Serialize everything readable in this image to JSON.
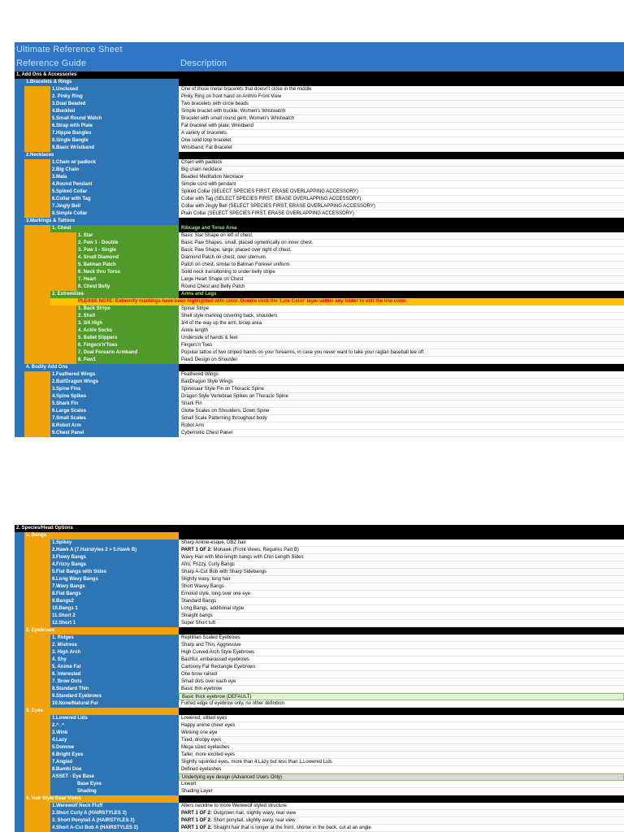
{
  "header": {
    "title": "Ultimate Reference Sheet",
    "col1": "Reference Guide",
    "col2": "Description"
  },
  "blocks": [
    {
      "sections": [
        {
          "title": "1. Add Ons & Accessories",
          "groups": [
            {
              "title": "1.Bracelets & Rings",
              "color": "#2e75b6",
              "item_color": "#2e75b6",
              "items": [
                {
                  "label": "1.Unclosed",
                  "desc": "One of those metal bracelets that doesn't close in the middle"
                },
                {
                  "label": "2. Pinky Ring",
                  "desc": "Pinky Ring on front hand on Anthro Front View"
                },
                {
                  "label": "3.Dual Beaded",
                  "desc": "Two bracelets with circle beads"
                },
                {
                  "label": "4.Buckled",
                  "desc": "Simple braclet with buckle; Women's Wristwatch"
                },
                {
                  "label": "5.Small Round Watch",
                  "desc": "Bracelet with small round gem; Women's Wristwatch"
                },
                {
                  "label": "6.Strap with Plate",
                  "desc": "Fat bracelet with plate; Wristband"
                },
                {
                  "label": "7.Hippie Bangles",
                  "desc": "A variety of bracelets."
                },
                {
                  "label": "8.Single Bangle",
                  "desc": "One solid loop bracelet."
                },
                {
                  "label": "9.Basic Wristband",
                  "desc": "Wristband; Fat Bracelet"
                }
              ]
            },
            {
              "title": "2.Necklaces",
              "color": "#2e75b6",
              "item_color": "#2e75b6",
              "items": [
                {
                  "label": "1.Chain w/ padlock",
                  "desc": "Chain with padlock"
                },
                {
                  "label": "2.Big Chain",
                  "desc": "Big chain necklace"
                },
                {
                  "label": "3.Mala",
                  "desc": "Beaded Meditation Necklace"
                },
                {
                  "label": "4.Round Pendant",
                  "desc": "Simple cord with pendant"
                },
                {
                  "label": "5.Spiked Collar",
                  "desc": "Spiked Collar (SELECT SPECIES FIRST, ERASE OVERLAPPING ACCESSORY)"
                },
                {
                  "label": "6.Collar with Tag",
                  "desc": "Collar with Tag (SELECT SPECIES FIRST, ERASE OVERLAPPING ACCESSORY)"
                },
                {
                  "label": "7.Jingly Bell",
                  "desc": "Collar with Jingly Bell (SELECT SPECIES FIRST, ERASE OVERLAPPING ACCESSORY)"
                },
                {
                  "label": "8.Simple Collar",
                  "desc": "Plain Collar (SELECT SPECIES FIRST, ERASE OVERLAPPING ACCESSORY)"
                }
              ]
            },
            {
              "title": "3.Markings & Tattoos",
              "color": "#2e75b6",
              "groups": [
                {
                  "title": "1. Chest",
                  "desc": "Ribcage and Torso Area",
                  "color": "#4f9a2a",
                  "item_color": "#4f9a2a",
                  "items": [
                    {
                      "label": "1. Star",
                      "desc": "Basic Star Shape on left of chest."
                    },
                    {
                      "label": "2. Paw 1 - Double",
                      "desc": "Basic Paw Shapes, small, placed symetrically on inner chest."
                    },
                    {
                      "label": "3. Paw 1 - Single",
                      "desc": "Basic Paw Shape, large, placed over right of chest."
                    },
                    {
                      "label": "4. Small Diamond",
                      "desc": "Diamond Patch on chest, over sternum."
                    },
                    {
                      "label": "5. Batman Patch",
                      "desc": "Patch on chest, similar to Batman Forever uniform."
                    },
                    {
                      "label": "6. Neck thru Torso",
                      "desc": "Solid neck transitioning to under belly stripe"
                    },
                    {
                      "label": "7. Heart",
                      "desc": "Large Heart Shape on Chest"
                    },
                    {
                      "label": "8. Chest Belly",
                      "desc": "Round Chest and Belly Patch"
                    }
                  ]
                },
                {
                  "title": "2. Extremities",
                  "desc": "Arms and Legs",
                  "color": "#4f9a2a",
                  "item_color": "#4f9a2a",
                  "note": "PLEASE NOTE: Extremity markings have been highlighted with color. Double click the 'Line Color' layer within any folder to edit the line color.",
                  "items": [
                    {
                      "label": "1. Back Stripe",
                      "desc": "Spinal Stripe"
                    },
                    {
                      "label": "2. Shell",
                      "desc": "Shell style marking covering back, shoulders"
                    },
                    {
                      "label": "3. 3/4 High",
                      "desc": "3/4 of the way up the arm, bicep area"
                    },
                    {
                      "label": "4. Ankle Socks",
                      "desc": "Ankle length"
                    },
                    {
                      "label": "5. Ballet Slippers",
                      "desc": "Underside of hands & feet"
                    },
                    {
                      "label": "6. Fingers'n'Toes",
                      "desc": "Fingers'n'Toes"
                    },
                    {
                      "label": "7. Dual Forearm Armband",
                      "desc": "Popular tattoo of two striped bands on your forearms, in case you never want to take your raglan baseball tee off."
                    },
                    {
                      "label": "8. Paw1",
                      "desc": "Paw1 Design on Shoulder"
                    }
                  ]
                }
              ]
            },
            {
              "title": "4. Bodily Add Ons",
              "color": "#2e75b6",
              "item_color": "#2e75b6",
              "items": [
                {
                  "label": "1.Feathered Wings",
                  "desc": "Feathered Wings"
                },
                {
                  "label": "2.Bat/Dragon Wings",
                  "desc": "Bat/Dragon Style Wings"
                },
                {
                  "label": "3.Spine Fins",
                  "desc": "Spinosaur Style Fin on Thoracic Spine"
                },
                {
                  "label": "4.Spine Spikes",
                  "desc": "Dragon Style Vertebrae Spikes on Thoracic Spine"
                },
                {
                  "label": "5.Shark Fin",
                  "desc": "Shark Fin"
                },
                {
                  "label": "6.Large Scales",
                  "desc": "Globe Scales on Shoulders, Down Spine"
                },
                {
                  "label": "7.Small Scales",
                  "desc": "Small Scale Patterning throughout body"
                },
                {
                  "label": "8.Robot Arm",
                  "desc": "Robot Arm"
                },
                {
                  "label": "9.Chest Panel",
                  "desc": "Cybernetic Chest Panel"
                }
              ]
            }
          ]
        }
      ]
    },
    {
      "sections": [
        {
          "title": "2. Species/Head Options",
          "groups": [
            {
              "title": "1. Bangs",
              "color": "#f0a30a",
              "item_color": "#2e75b6",
              "items": [
                {
                  "label": "1.Spikey",
                  "desc": "Sharp Anime-esque, DBZ hair"
                },
                {
                  "label": "2.Hawk A (7.Hairstyles 2 > 5.Hawk B)",
                  "desc_bold": "PART 1 OF 2:",
                  "desc": " Mohawk (Front Views, Requires Part B)"
                },
                {
                  "label": "3.Flowy Bangs",
                  "desc": "Wavy Hair with Mid-length bangs with Chin Length Sides"
                },
                {
                  "label": "4.Frizzy Bangs",
                  "desc": "Afro, Frizzy, Curly Bangs"
                },
                {
                  "label": "5.Flat Bangs with Sides",
                  "desc": "Sharp A-Cut Bob with Sharp Sidebangs"
                },
                {
                  "label": "6.Long Wavy Bangs",
                  "desc": "Slightly wavy, long hair"
                },
                {
                  "label": "7.Wavy Bangs",
                  "desc": "Short Wavey Bangs"
                },
                {
                  "label": "8.Flat Bangs",
                  "desc": "Emokid style, long over one eye"
                },
                {
                  "label": "9.Bangs2",
                  "desc": "Standard Bangs"
                },
                {
                  "label": "10.Bangs 1",
                  "desc": "Long Bangs, additional stype"
                },
                {
                  "label": "11.Short 2",
                  "desc": "Straight bangs"
                },
                {
                  "label": "12.Short 1",
                  "desc": "Super Short tuft"
                }
              ]
            },
            {
              "title": "2. Eyebrows",
              "color": "#f0a30a",
              "item_color": "#2e75b6",
              "items": [
                {
                  "label": "1. Ridges",
                  "desc": "Reptillian Scaled Eyebrows"
                },
                {
                  "label": "2. Mistress",
                  "desc": "Sharp and Thin, Aggressive"
                },
                {
                  "label": "3. High Arch",
                  "desc": "High Curved Arch Style Eyebrows"
                },
                {
                  "label": "4. Shy",
                  "desc": "Bashful, embarassed eyebrows"
                },
                {
                  "label": "5. Anime Fat",
                  "desc": "Cartoony Fat Rectangle Eyebrows"
                },
                {
                  "label": "6. Interested",
                  "desc": "One brow raised"
                },
                {
                  "label": "7. Brow Dots",
                  "desc": "Small dots over each eye"
                },
                {
                  "label": "8.Standard Thin",
                  "desc": "Basic thin eyebrow"
                },
                {
                  "label": "9.Standard Eyebrows",
                  "desc": "Basic thick eyebrow (DEFAULT)",
                  "desc_color": "#e2efd9"
                },
                {
                  "label": "10.None/Natural Fur",
                  "desc": "Furred edge of eyebrow only, no other definition"
                }
              ]
            },
            {
              "title": "3. Eyes",
              "color": "#f0a30a",
              "item_color": "#2e75b6",
              "items": [
                {
                  "label": "1.Lowered Lids",
                  "desc": "Lowered, slitted eyes"
                },
                {
                  "label": "2.^_^",
                  "desc": "Happy anime cheer eyes"
                },
                {
                  "label": "3.Wink",
                  "desc": "Winking one eye"
                },
                {
                  "label": "4.Lazy",
                  "desc": "Tired, droopy eyes"
                },
                {
                  "label": "5.Domme",
                  "desc": "Mega sized eyelashes"
                },
                {
                  "label": "6.Bright Eyes",
                  "desc": "Taller, more excited eyes"
                },
                {
                  "label": "7.Angled",
                  "desc": "Slightly squinted eyes, more than 4.Lazy but less than 1.Lowered Lids"
                },
                {
                  "label": "8.Bambi Doe",
                  "desc": "Defined eyelashes"
                },
                {
                  "label": "ASSET - Eye Base",
                  "desc": "Underlying eye design (Advanced Users Only)",
                  "desc_color": "#d9d9d9",
                  "items": [
                    {
                      "label": "Base Eyes",
                      "desc": "Lineart"
                    },
                    {
                      "label": "Shading",
                      "desc": "Shading Layer"
                    }
                  ]
                }
              ]
            },
            {
              "title": "4. Hair Style Rear Views",
              "color": "#f0a30a",
              "item_color": "#2e75b6",
              "items": [
                {
                  "label": "1.Werewolf Neck Fluff",
                  "desc": "Alters neckline to more Werewolf styled structure"
                },
                {
                  "label": "2.Short Curly A (HAIRSTYLES 2)",
                  "desc_bold": "PART 1 OF 2:",
                  "desc": " Outgrown hair, slightly wavy, rear view"
                },
                {
                  "label": "3. Short Ponytail A (HAIRSTYLES 2)",
                  "desc_bold": "PART 1 OF 2:",
                  "desc": " Short ponytail, slightly wavy, rear view"
                },
                {
                  "label": "4.Short A-Cut Bob A (HAIRSTYLES 2)",
                  "desc_bold": "PART 1 OF 2:",
                  "desc": " Straight hair that is longer at the front, shorter in the back, cut at an angle."
                }
              ]
            }
          ]
        }
      ]
    }
  ]
}
